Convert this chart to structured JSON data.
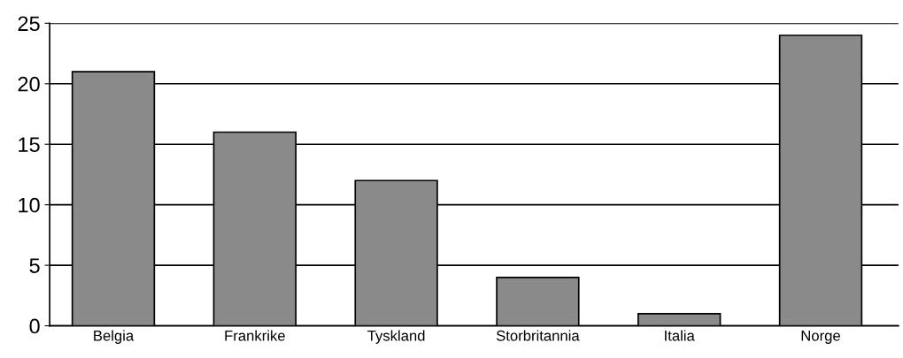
{
  "chart_data": {
    "type": "bar",
    "categories": [
      "Belgia",
      "Frankrike",
      "Tyskland",
      "Storbritannia",
      "Italia",
      "Norge"
    ],
    "values": [
      21,
      16,
      12,
      4,
      1,
      24
    ],
    "color": "#8a8a8a",
    "ylim": [
      0,
      25
    ],
    "yticks": [
      0,
      5,
      10,
      15,
      20,
      25
    ],
    "grid": "y"
  }
}
